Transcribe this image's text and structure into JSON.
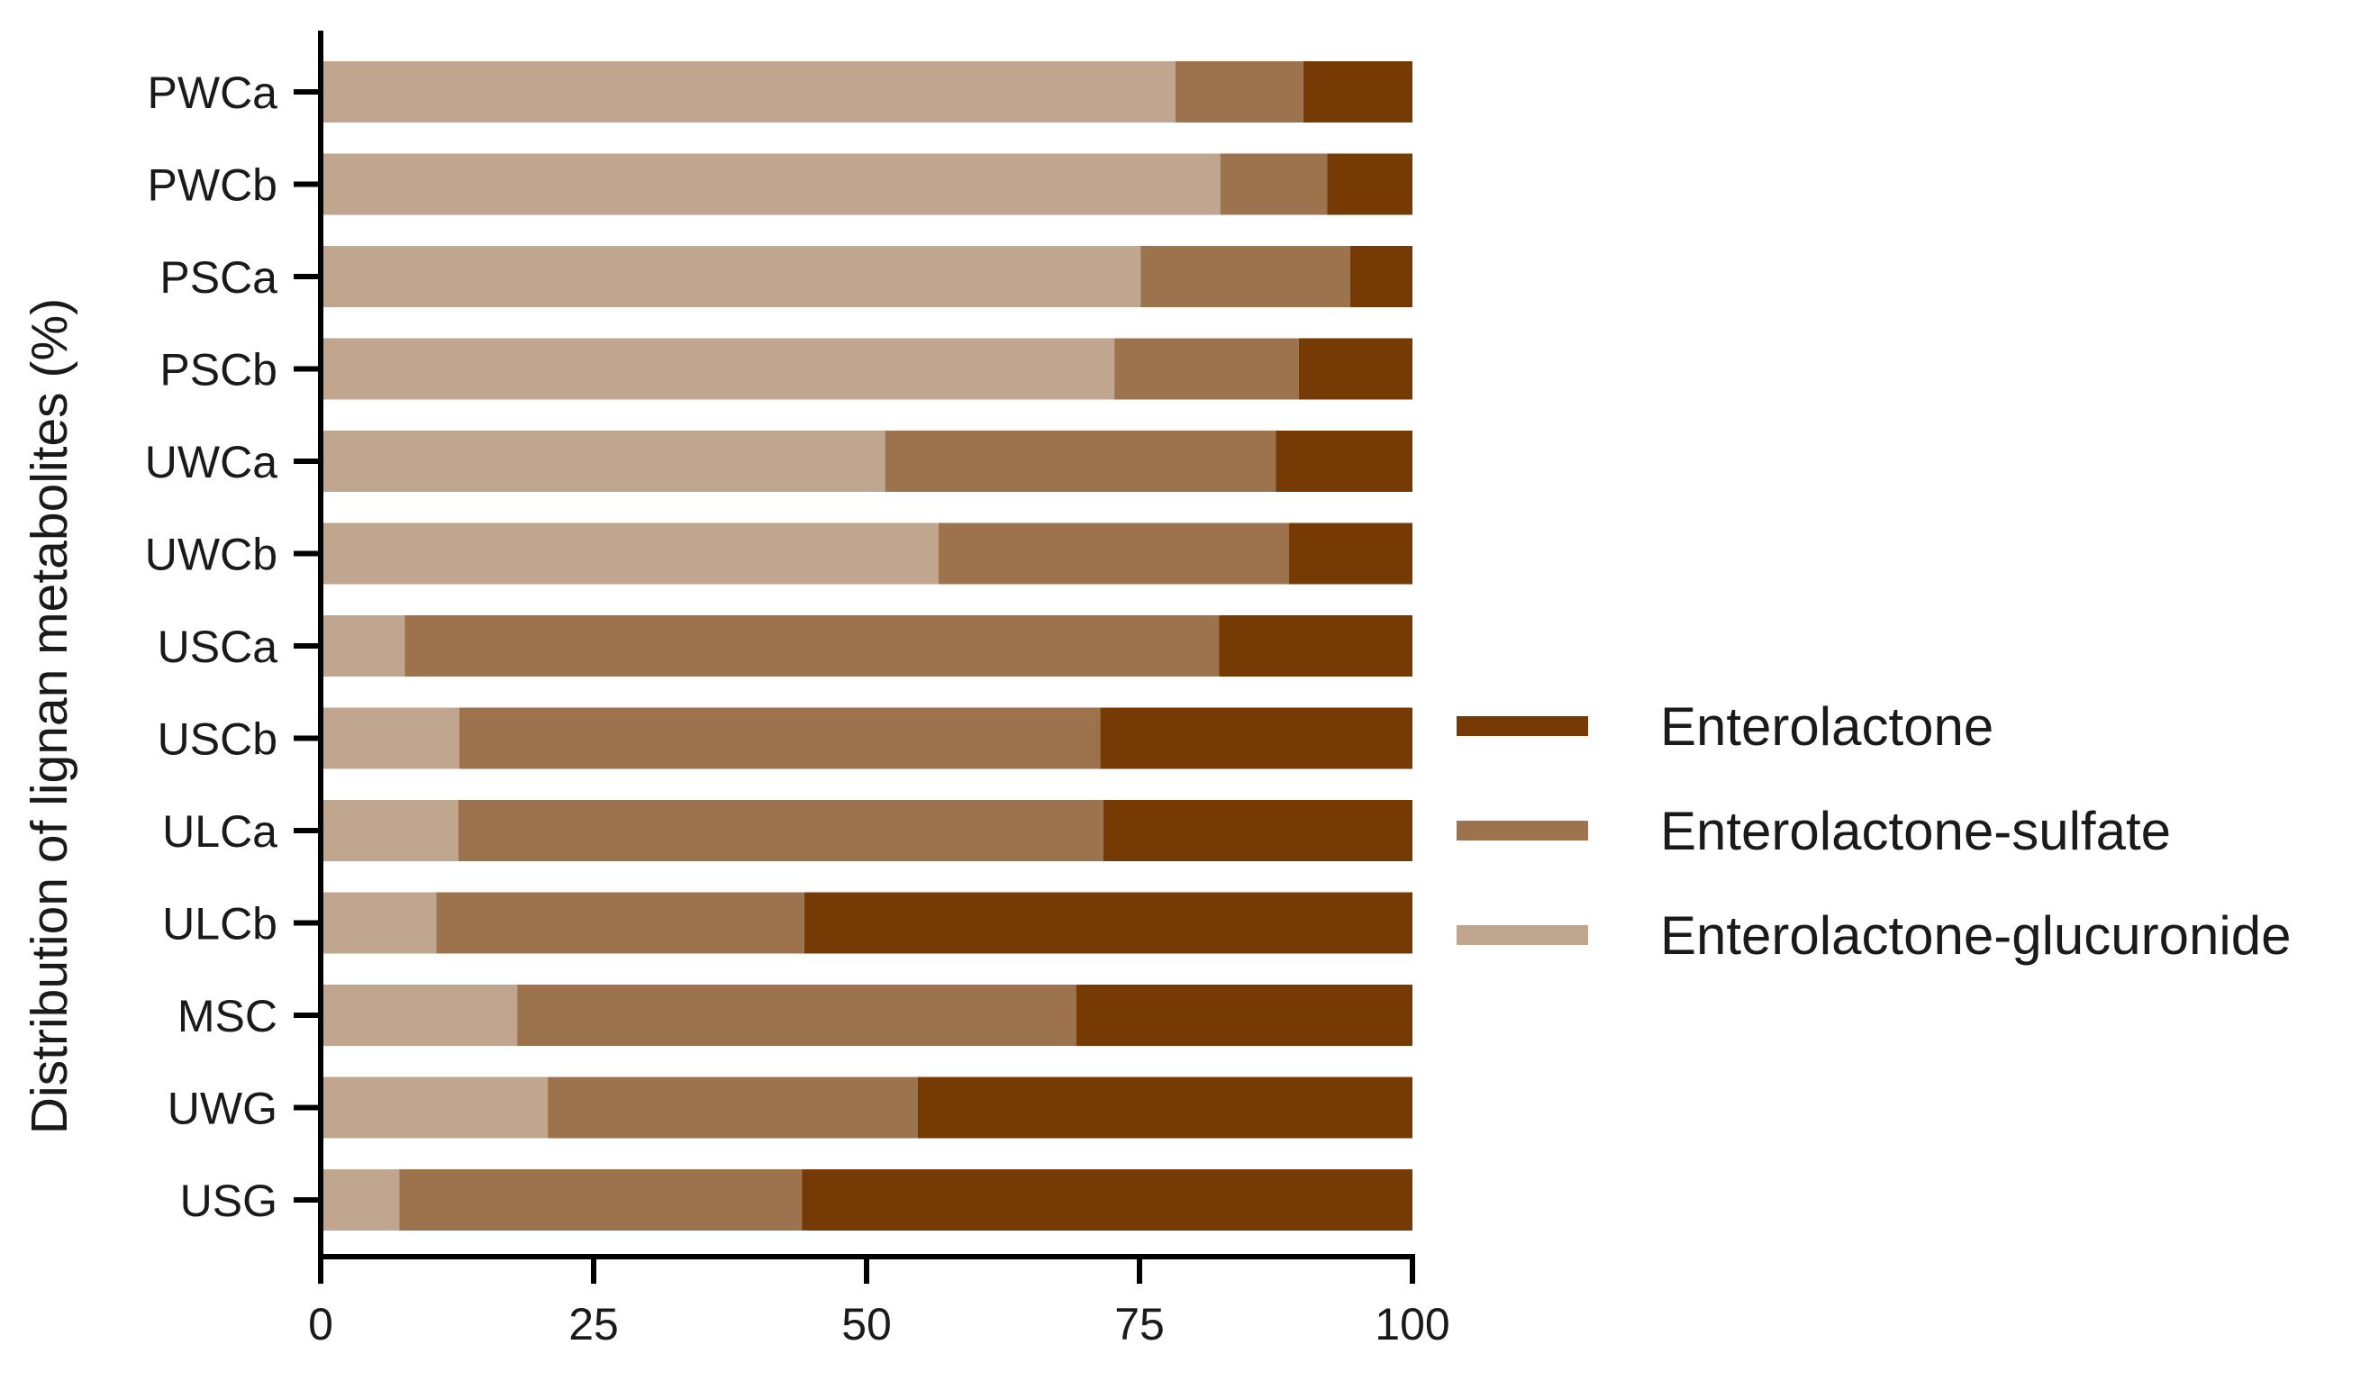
{
  "chart_data": {
    "type": "bar",
    "orientation": "horizontal",
    "stacked": true,
    "title": "",
    "xlabel": "",
    "ylabel": "Distribution of lignan metabolites (%)",
    "xlim": [
      0,
      100
    ],
    "xticks": [
      "0",
      "25",
      "50",
      "75",
      "100"
    ],
    "categories": [
      "PWCa",
      "PWCb",
      "PSCa",
      "PSCb",
      "UWCa",
      "UWCb",
      "USCa",
      "USCb",
      "ULCa",
      "ULCb",
      "MSC",
      "UWG",
      "USG"
    ],
    "series": [
      {
        "name": "Enterolactone-glucuronide",
        "color": "#c0a68e",
        "values": [
          78.3,
          82.4,
          75.1,
          72.7,
          51.7,
          56.6,
          7.7,
          12.7,
          12.6,
          10.6,
          18.0,
          20.8,
          7.2
        ]
      },
      {
        "name": "Enterolactone-sulfate",
        "color": "#9c734d",
        "values": [
          11.7,
          9.8,
          19.2,
          16.9,
          35.8,
          32.1,
          74.6,
          58.7,
          59.1,
          33.7,
          51.2,
          33.9,
          36.9
        ]
      },
      {
        "name": "Enterolactone",
        "color": "#763a04",
        "values": [
          10.0,
          7.8,
          5.7,
          10.4,
          12.5,
          11.3,
          17.7,
          28.6,
          28.3,
          55.7,
          30.8,
          45.3,
          55.9
        ]
      }
    ],
    "legend": {
      "position": "right",
      "entries": [
        "Enterolactone",
        "Enterolactone-sulfate",
        "Enterolactone-glucuronide"
      ]
    },
    "grid": false
  }
}
